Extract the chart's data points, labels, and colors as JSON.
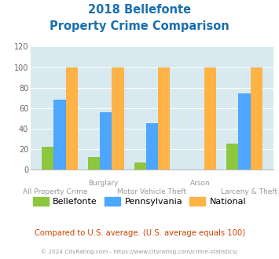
{
  "title_line1": "2018 Bellefonte",
  "title_line2": "Property Crime Comparison",
  "bellefonte": [
    22,
    12,
    7,
    0,
    25
  ],
  "pennsylvania": [
    68,
    56,
    45,
    0,
    74
  ],
  "national": [
    100,
    100,
    100,
    100,
    100
  ],
  "color_bellefonte": "#8dc63f",
  "color_pennsylvania": "#4da6ff",
  "color_national": "#ffb347",
  "ylim": [
    0,
    120
  ],
  "yticks": [
    0,
    20,
    40,
    60,
    80,
    100,
    120
  ],
  "title_color": "#1a6faf",
  "bg_color": "#d8eaf0",
  "top_labels": {
    "1": "Burglary",
    "3": "Arson"
  },
  "bot_labels": {
    "0": "All Property Crime",
    "2": "Motor Vehicle Theft",
    "4": "Larceny & Theft"
  },
  "legend_labels": [
    "Bellefonte",
    "Pennsylvania",
    "National"
  ],
  "footnote": "Compared to U.S. average. (U.S. average equals 100)",
  "copyright": "© 2024 CityRating.com - https://www.cityrating.com/crime-statistics/",
  "footnote_color": "#cc4400",
  "copyright_color": "#999999",
  "label_color": "#999999"
}
